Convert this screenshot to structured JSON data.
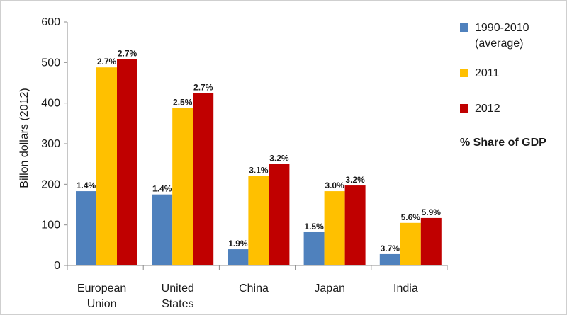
{
  "chart_data": {
    "type": "bar",
    "title": "",
    "xlabel": "",
    "ylabel": "Billon dollars  (2012)",
    "ylim": [
      0,
      600
    ],
    "yticks": [
      0,
      100,
      200,
      300,
      400,
      500,
      600
    ],
    "categories": [
      [
        "European",
        "Union"
      ],
      [
        "United",
        "States"
      ],
      [
        "China"
      ],
      [
        "Japan"
      ],
      [
        "India"
      ]
    ],
    "series": [
      {
        "name": [
          "1990-2010",
          "(average)"
        ],
        "color": "#4f81bd",
        "values": [
          183,
          175,
          40,
          82,
          28
        ],
        "labels": [
          "1.4%",
          "1.4%",
          "1.9%",
          "1.5%",
          "3.7%"
        ]
      },
      {
        "name": [
          "2011"
        ],
        "color": "#ffc000",
        "values": [
          488,
          388,
          221,
          183,
          105
        ],
        "labels": [
          "2.7%",
          "2.5%",
          "3.1%",
          "3.0%",
          "5.6%"
        ]
      },
      {
        "name": [
          "2012"
        ],
        "color": "#c00000",
        "values": [
          508,
          425,
          250,
          197,
          117
        ],
        "labels": [
          "2.7%",
          "2.7%",
          "3.2%",
          "3.2%",
          "5.9%"
        ]
      }
    ],
    "legend_position": "right",
    "legend_note": "% Share of GDP",
    "grid": false
  }
}
